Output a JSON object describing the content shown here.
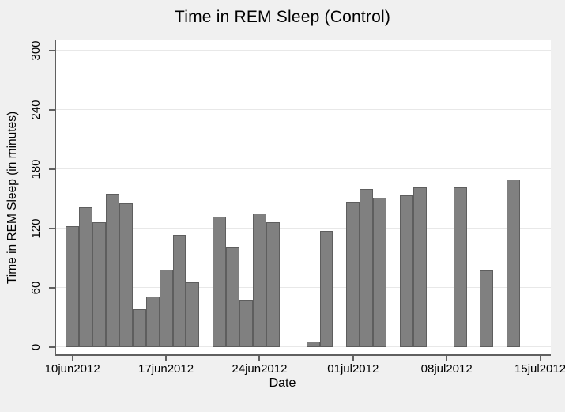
{
  "chart_data": {
    "type": "bar",
    "title": "Time in REM Sleep (Control)",
    "xlabel": "Date",
    "ylabel": "Time in REM Sleep (in minutes)",
    "x_tick_labels": [
      "10jun2012",
      "17jun2012",
      "24jun2012",
      "01jul2012",
      "08jul2012",
      "15jul2012"
    ],
    "y_ticks": [
      0,
      60,
      120,
      180,
      240,
      300
    ],
    "ylim": [
      0,
      310
    ],
    "grid": true,
    "legend_position": "none",
    "colors": {
      "bar_fill": "#808080",
      "bar_border": "#5e5e5e",
      "background": "#f0f0f0",
      "plot_background": "#ffffff",
      "gridline": "#e8e8e8",
      "axis": "#606060",
      "text": "#000000"
    },
    "points": [
      {
        "date": "10jun2012",
        "minutes": 122
      },
      {
        "date": "11jun2012",
        "minutes": 141
      },
      {
        "date": "12jun2012",
        "minutes": 126
      },
      {
        "date": "13jun2012",
        "minutes": 155
      },
      {
        "date": "14jun2012",
        "minutes": 145
      },
      {
        "date": "15jun2012",
        "minutes": 38
      },
      {
        "date": "16jun2012",
        "minutes": 51
      },
      {
        "date": "17jun2012",
        "minutes": 78
      },
      {
        "date": "18jun2012",
        "minutes": 113
      },
      {
        "date": "19jun2012",
        "minutes": 65
      },
      {
        "date": "21jun2012",
        "minutes": 132
      },
      {
        "date": "22jun2012",
        "minutes": 101
      },
      {
        "date": "23jun2012",
        "minutes": 47
      },
      {
        "date": "24jun2012",
        "minutes": 135
      },
      {
        "date": "25jun2012",
        "minutes": 126
      },
      {
        "date": "28jun2012",
        "minutes": 5
      },
      {
        "date": "29jun2012",
        "minutes": 117
      },
      {
        "date": "01jul2012",
        "minutes": 146
      },
      {
        "date": "02jul2012",
        "minutes": 160
      },
      {
        "date": "03jul2012",
        "minutes": 151
      },
      {
        "date": "05jul2012",
        "minutes": 153
      },
      {
        "date": "06jul2012",
        "minutes": 161
      },
      {
        "date": "09jul2012",
        "minutes": 161
      },
      {
        "date": "11jul2012",
        "minutes": 77
      },
      {
        "date": "13jul2012",
        "minutes": 169
      }
    ]
  }
}
